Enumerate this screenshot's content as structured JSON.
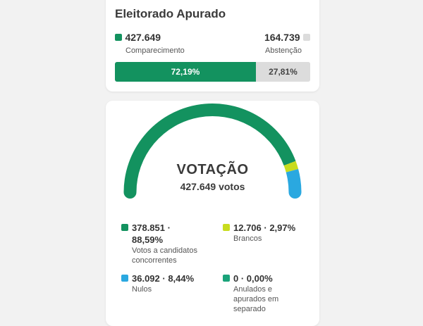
{
  "turnout": {
    "title": "Eleitorado Apurado",
    "comparecimento": {
      "value": "427.649",
      "label": "Comparecimento",
      "percent_text": "72,19%",
      "percent": 72.19,
      "color": "#13925f"
    },
    "abstencao": {
      "value": "164.739",
      "label": "Abstenção",
      "percent_text": "27,81%",
      "percent": 27.81,
      "color": "#dcdcdc"
    }
  },
  "votacao": {
    "title": "VOTAÇÃO",
    "subtitle": "427.649 votos",
    "segments": [
      {
        "key": "candidatos",
        "percent": 88.59,
        "color": "#13925f"
      },
      {
        "key": "brancos",
        "percent": 2.97,
        "color": "#c8dc1e"
      },
      {
        "key": "nulos",
        "percent": 8.44,
        "color": "#2aa8e0"
      },
      {
        "key": "anulados",
        "percent": 0.0,
        "color": "#1aa37a"
      }
    ],
    "legend": {
      "candidatos": {
        "value_line1": "378.851 ·",
        "value_line2": "88,59%",
        "label_line1": "Votos a candidatos",
        "label_line2": "concorrentes",
        "color": "#13925f"
      },
      "brancos": {
        "value": "12.706 · 2,97%",
        "label": "Brancos",
        "color": "#c8dc1e"
      },
      "nulos": {
        "value": "36.092 · 8,44%",
        "label": "Nulos",
        "color": "#2aa8e0"
      },
      "anulados": {
        "value": "0 · 0,00%",
        "label_line1": "Anulados e",
        "label_line2": "apurados em",
        "label_line3": "separado",
        "color": "#1aa37a"
      }
    }
  }
}
